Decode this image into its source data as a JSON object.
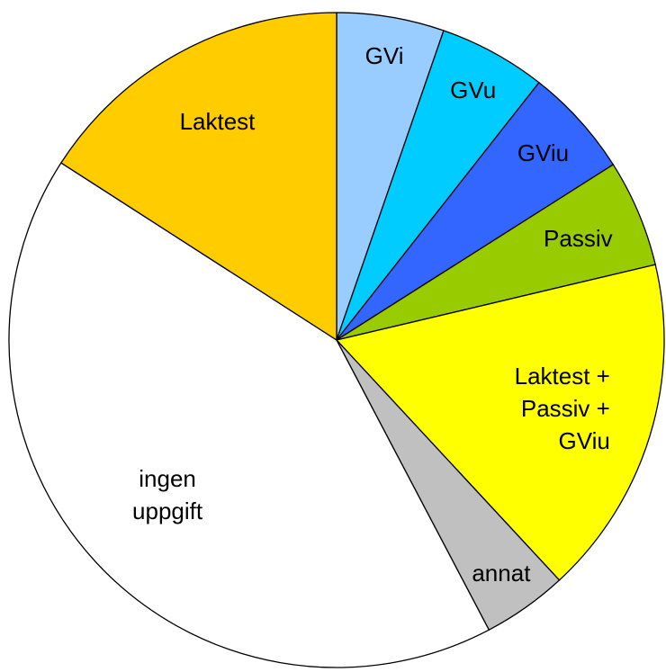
{
  "chart_data": {
    "type": "pie",
    "categories": [
      "GVi",
      "GVu",
      "GViu",
      "Passiv",
      "Laktest +\nPassiv +\nGViu",
      "annat",
      "ingen\nuppgift",
      "Laktest"
    ],
    "values": [
      5.3,
      5.3,
      5.4,
      5.3,
      16.8,
      4.2,
      41.8,
      15.9
    ],
    "colors": [
      "#99ccff",
      "#00ccff",
      "#3366ff",
      "#99cc00",
      "#ffff00",
      "#c0c0c0",
      "#ffffff",
      "#ffcc00"
    ]
  }
}
